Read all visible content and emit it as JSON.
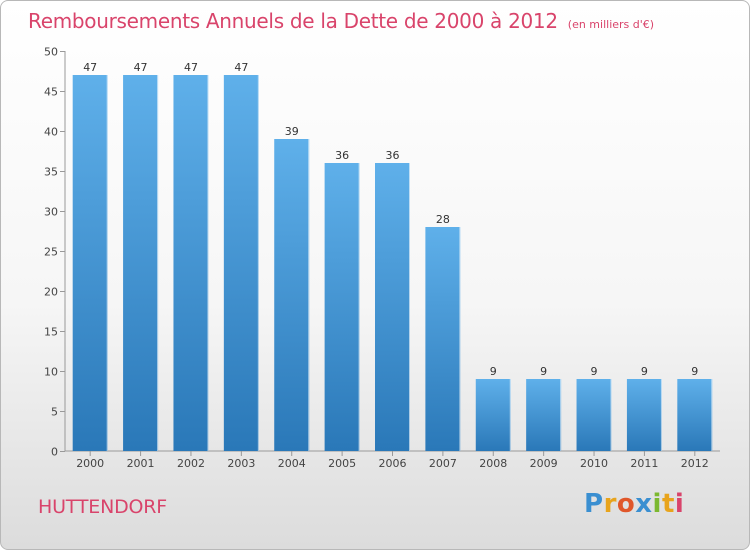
{
  "chart_data": {
    "type": "bar",
    "title": "Remboursements Annuels de la Dette de 2000 à 2012",
    "unit": "(en milliers d'€)",
    "categories": [
      "2000",
      "2001",
      "2002",
      "2003",
      "2004",
      "2005",
      "2006",
      "2007",
      "2008",
      "2009",
      "2010",
      "2011",
      "2012"
    ],
    "values": [
      47,
      47,
      47,
      47,
      39,
      36,
      36,
      28,
      9,
      9,
      9,
      9,
      9
    ],
    "ylim": [
      0,
      50
    ],
    "yticks": [
      0,
      5,
      10,
      15,
      20,
      25,
      30,
      35,
      40,
      45,
      50
    ],
    "xlabel": "",
    "ylabel": "",
    "grid": false
  },
  "commune": "HUTTENDORF",
  "logo": {
    "letters": [
      "P",
      "r",
      "o",
      "x",
      "i",
      "t",
      "i"
    ],
    "colors": [
      "#3a8fd1",
      "#e8a41c",
      "#e0572a",
      "#3a8fd1",
      "#7cb82f",
      "#e8a41c",
      "#d9446b"
    ]
  },
  "colors": {
    "accent": "#d9446b",
    "bar_top": "#5fb0ea",
    "bar_bottom": "#2a78b8"
  }
}
